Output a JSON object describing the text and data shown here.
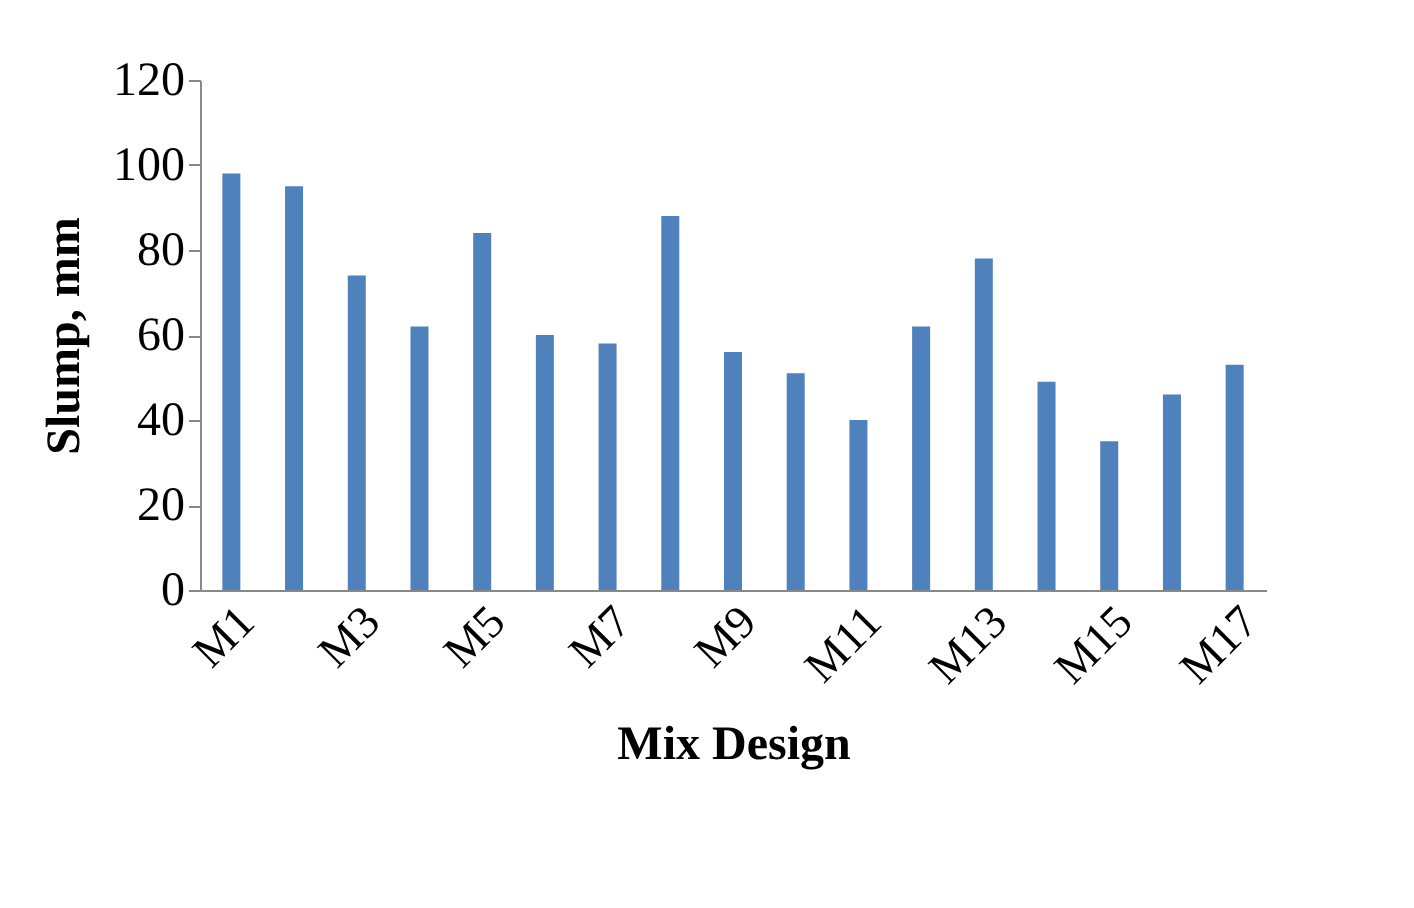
{
  "chart_data": {
    "type": "bar",
    "xlabel": "Mix Design",
    "ylabel": "Slump, mm",
    "categories": [
      "M1",
      null,
      "M3",
      null,
      "M5",
      null,
      "M7",
      null,
      "M9",
      null,
      "M11",
      null,
      "M13",
      null,
      "M15",
      null,
      "M17"
    ],
    "values": [
      98,
      95,
      74,
      62,
      84,
      60,
      58,
      88,
      56,
      51,
      40,
      62,
      78,
      49,
      35,
      46,
      53
    ],
    "color": "#4f81bd",
    "ylim": [
      0,
      120
    ],
    "yticks": [
      0,
      20,
      40,
      60,
      80,
      100,
      120
    ],
    "grid": false
  }
}
